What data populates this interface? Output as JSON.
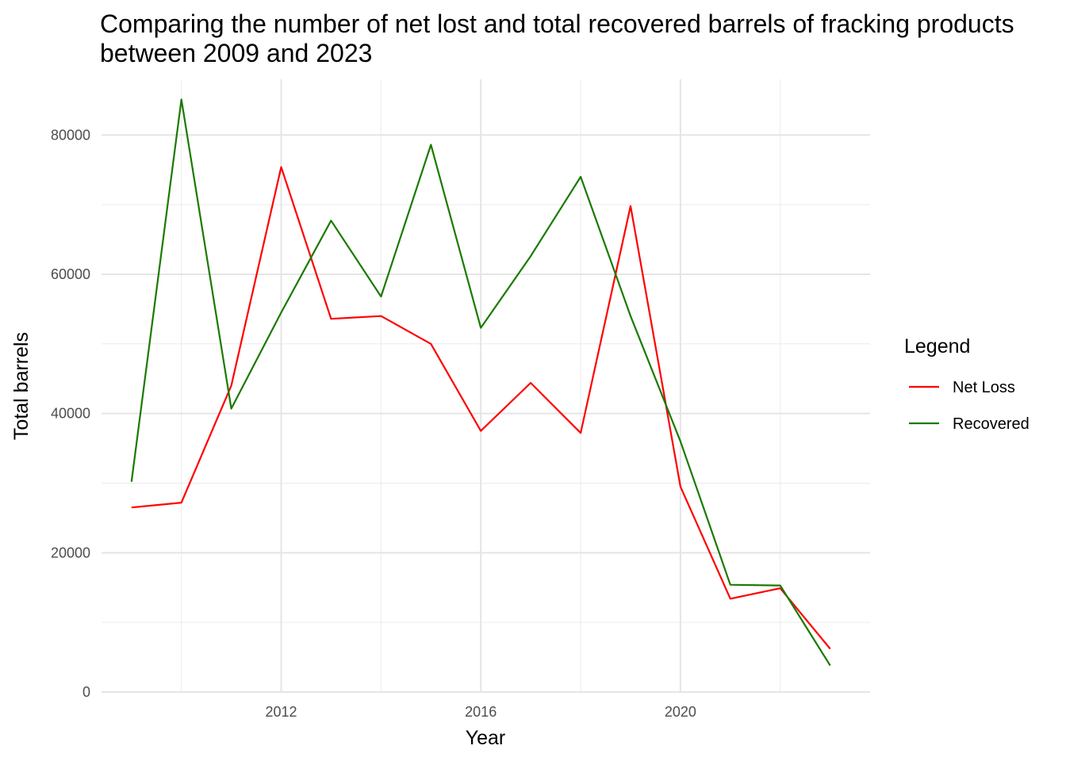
{
  "chart_data": {
    "type": "line",
    "title": "Comparing the number of net lost and total recovered barrels of fracking products between 2009 and 2023",
    "xlabel": "Year",
    "ylabel": "Total barrels",
    "x": [
      2009,
      2010,
      2011,
      2012,
      2013,
      2014,
      2015,
      2016,
      2017,
      2018,
      2019,
      2020,
      2021,
      2022,
      2023
    ],
    "xlim": [
      2008.4,
      2023.8
    ],
    "ylim": [
      0,
      88000
    ],
    "x_ticks": [
      2012,
      2016,
      2020
    ],
    "y_ticks": [
      0,
      20000,
      40000,
      60000,
      80000
    ],
    "x_tick_labels": [
      "2012",
      "2016",
      "2020"
    ],
    "y_tick_labels": [
      "0",
      "20000",
      "40000",
      "60000",
      "80000"
    ],
    "grid": true,
    "legend": {
      "title": "Legend",
      "placement": "right"
    },
    "series": [
      {
        "name": "Net Loss",
        "color": "#ff0000",
        "values": [
          26500,
          27200,
          44000,
          75400,
          53600,
          54000,
          50000,
          37500,
          44400,
          37200,
          69800,
          29500,
          13400,
          14900,
          6200
        ]
      },
      {
        "name": "Recovered",
        "color": "#1a7a00",
        "values": [
          30200,
          85100,
          40700,
          54500,
          67700,
          56800,
          78600,
          52300,
          62600,
          74000,
          54000,
          36000,
          15400,
          15300,
          3800
        ]
      }
    ]
  }
}
